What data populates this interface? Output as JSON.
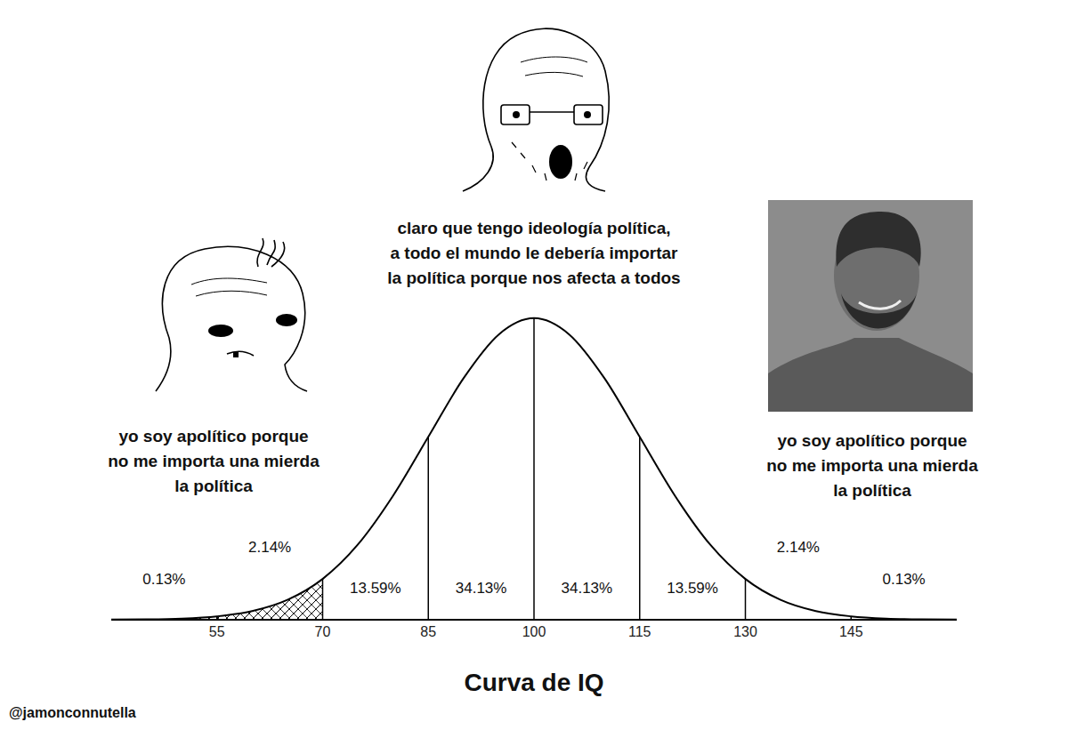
{
  "chart_data": {
    "type": "area",
    "title": "Curva de IQ",
    "x": [
      40,
      45,
      50,
      55,
      60,
      65,
      70,
      75,
      80,
      85,
      90,
      95,
      100,
      105,
      110,
      115,
      120,
      125,
      130,
      135,
      140,
      145,
      150,
      155,
      160
    ],
    "values": [
      0.001,
      0.003,
      0.01,
      0.03,
      0.076,
      0.175,
      0.36,
      0.663,
      1.094,
      1.613,
      2.13,
      2.516,
      2.66,
      2.516,
      2.13,
      1.613,
      1.094,
      0.663,
      0.36,
      0.175,
      0.076,
      0.03,
      0.01,
      0.003,
      0.001
    ],
    "color": "#000000",
    "xlim": [
      40,
      160
    ],
    "xticks": [
      55,
      70,
      85,
      100,
      115,
      130,
      145
    ],
    "ylim": [
      0,
      2.8
    ],
    "tick_labels": "x",
    "regions": [
      {
        "from": 40,
        "to": 55,
        "label": "0.13%"
      },
      {
        "from": 55,
        "to": 70,
        "label": "2.14%"
      },
      {
        "from": 70,
        "to": 85,
        "label": "13.59%"
      },
      {
        "from": 85,
        "to": 100,
        "label": "34.13%"
      },
      {
        "from": 100,
        "to": 115,
        "label": "34.13%"
      },
      {
        "from": 115,
        "to": 130,
        "label": "13.59%"
      },
      {
        "from": 130,
        "to": 145,
        "label": "2.14%"
      },
      {
        "from": 145,
        "to": 160,
        "label": "0.13%"
      }
    ]
  },
  "meme": {
    "panels": [
      {
        "position": "left",
        "text": [
          "yo soy apolítico porque",
          "no me importa una mierda",
          "la política"
        ]
      },
      {
        "position": "center",
        "text": [
          "claro que tengo ideología política,",
          "a todo el mundo le debería importar",
          "la política porque nos afecta a todos"
        ]
      },
      {
        "position": "right",
        "text": [
          "yo soy apolítico porque",
          "no me importa una mierda",
          "la política"
        ]
      }
    ],
    "credit": "@jamonconnutella"
  }
}
